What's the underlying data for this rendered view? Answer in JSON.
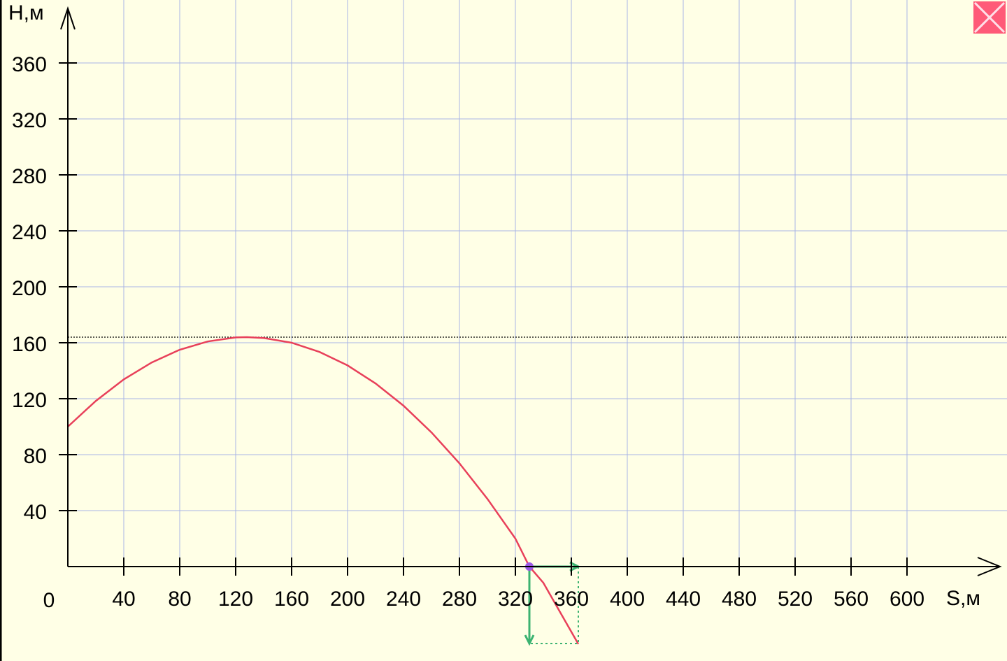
{
  "chart_data": {
    "type": "line",
    "x_label": "S,м",
    "y_label": "Н,м",
    "origin_label": "0",
    "x": [
      0,
      20,
      40,
      60,
      80,
      100,
      120,
      128,
      140,
      160,
      180,
      200,
      220,
      240,
      260,
      280,
      300,
      320,
      330,
      340,
      365
    ],
    "series": [
      {
        "color": "#e8405a",
        "values": [
          100,
          118.4,
          133.8,
          145.9,
          155,
          160.9,
          163.8,
          164,
          163.4,
          160,
          153.4,
          143.8,
          130.9,
          115,
          95.9,
          73.8,
          48.4,
          20,
          0,
          -11.6,
          -55.4
        ]
      }
    ],
    "xlim": [
      0,
      671.5
    ],
    "ylim": [
      -67.5,
      405
    ],
    "xticks": [
      40,
      80,
      120,
      160,
      200,
      240,
      280,
      320,
      360,
      400,
      440,
      480,
      520,
      560,
      600
    ],
    "yticks": [
      40,
      80,
      120,
      160,
      200,
      240,
      280,
      320,
      360
    ],
    "grid": true,
    "grid_color": "#a8b4e6",
    "max_height": 164,
    "point": {
      "x": 330,
      "y": 0,
      "color": "#9b59e6"
    },
    "velocity": {
      "x": 35,
      "y": -55,
      "color": "#3cb371"
    }
  }
}
